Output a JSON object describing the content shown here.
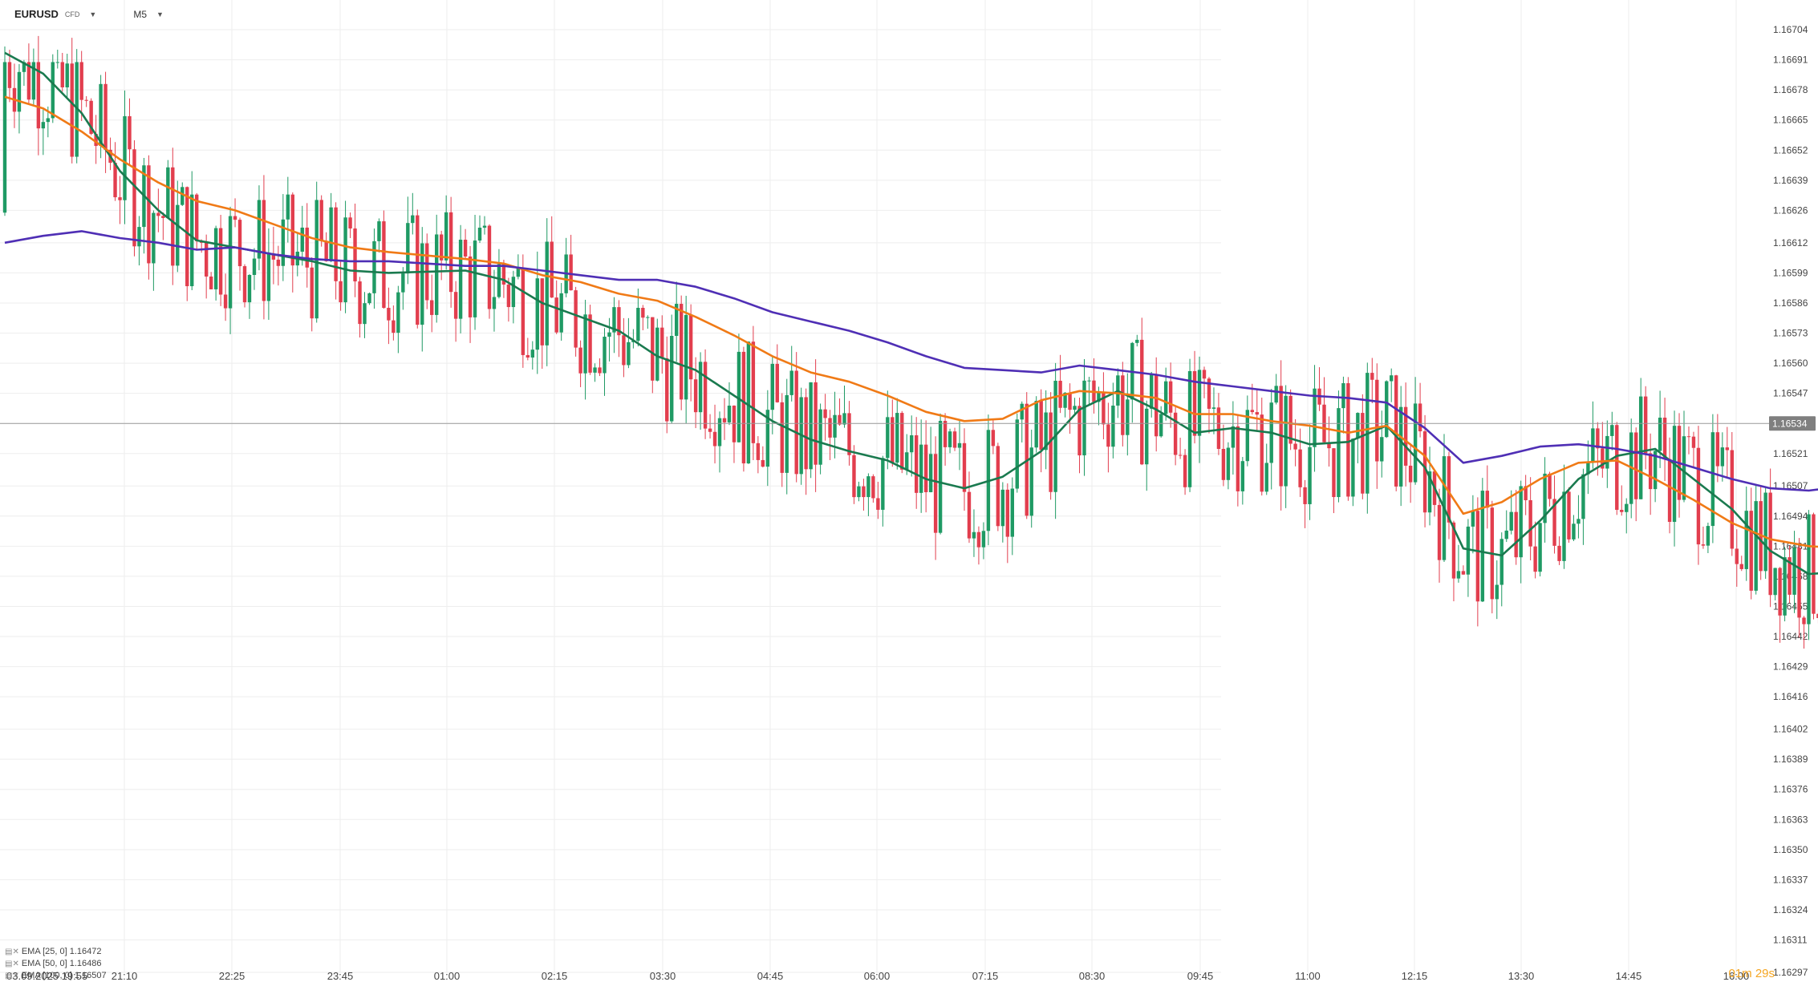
{
  "header": {
    "symbol": "EURUSD",
    "symbol_suffix": "CFD",
    "timeframe": "M5"
  },
  "indicators": [
    {
      "label": "EMA [25, 0] 1.16472",
      "color": "#1a7a4f"
    },
    {
      "label": "EMA [50, 0] 1.16486",
      "color": "#f07a16"
    },
    {
      "label": "EMA [100, 0] 1.16507",
      "color": "#4f2fb5"
    }
  ],
  "timer": {
    "minutes": "01",
    "m": "m",
    "seconds": "29",
    "s": "s"
  },
  "colors": {
    "up": "#1f9a64",
    "down": "#e23e4e",
    "grid": "#eeeeee",
    "price_line": "#999999",
    "price_label_bg": "#7f7f7f"
  },
  "chart_data": {
    "type": "candlestick",
    "symbol": "EURUSD",
    "timeframe": "M5",
    "y_ticks": [
      "1.16704",
      "1.16691",
      "1.16678",
      "1.16665",
      "1.16652",
      "1.16639",
      "1.16626",
      "1.16612",
      "1.16599",
      "1.16586",
      "1.16573",
      "1.16560",
      "1.16547",
      "1.16534",
      "1.16521",
      "1.16507",
      "1.16494",
      "1.16481",
      "1.16468",
      "1.16455",
      "1.16442",
      "1.16429",
      "1.16416",
      "1.16402",
      "1.16389",
      "1.16376",
      "1.16363",
      "1.16350",
      "1.16337",
      "1.16324",
      "1.16311",
      "1.16297"
    ],
    "ylim": [
      1.16297,
      1.16704
    ],
    "x_ticks": [
      "03.09.2025  19:55",
      "21:10",
      "22:25",
      "23:45",
      "01:00",
      "02:15",
      "03:30",
      "04:45",
      "06:00",
      "07:15",
      "08:30",
      "09:45",
      "11:00",
      "12:15",
      "13:30",
      "14:45",
      "16:00"
    ],
    "current_price": "1.16534",
    "grid": true,
    "ema_series": [
      {
        "name": "EMA [25, 0]",
        "color": "#1a7a4f",
        "points": [
          [
            0,
            1.16694
          ],
          [
            8,
            1.16685
          ],
          [
            16,
            1.16668
          ],
          [
            24,
            1.16643
          ],
          [
            32,
            1.16626
          ],
          [
            40,
            1.16613
          ],
          [
            48,
            1.1661
          ],
          [
            56,
            1.16607
          ],
          [
            64,
            1.16604
          ],
          [
            72,
            1.166
          ],
          [
            80,
            1.16599
          ],
          [
            96,
            1.166
          ],
          [
            104,
            1.16596
          ],
          [
            112,
            1.16586
          ],
          [
            120,
            1.1658
          ],
          [
            128,
            1.16574
          ],
          [
            136,
            1.16563
          ],
          [
            144,
            1.16557
          ],
          [
            152,
            1.16546
          ],
          [
            160,
            1.16535
          ],
          [
            168,
            1.16527
          ],
          [
            176,
            1.16522
          ],
          [
            184,
            1.16518
          ],
          [
            192,
            1.1651
          ],
          [
            200,
            1.16506
          ],
          [
            208,
            1.16511
          ],
          [
            216,
            1.16522
          ],
          [
            224,
            1.1654
          ],
          [
            232,
            1.16548
          ],
          [
            240,
            1.1654
          ],
          [
            248,
            1.1653
          ],
          [
            256,
            1.16532
          ],
          [
            264,
            1.1653
          ],
          [
            272,
            1.16525
          ],
          [
            280,
            1.16526
          ],
          [
            288,
            1.16533
          ],
          [
            296,
            1.16515
          ],
          [
            304,
            1.1648
          ],
          [
            312,
            1.16477
          ],
          [
            320,
            1.16492
          ],
          [
            328,
            1.1651
          ],
          [
            336,
            1.1652
          ],
          [
            344,
            1.16523
          ],
          [
            352,
            1.1651
          ],
          [
            360,
            1.16497
          ],
          [
            368,
            1.16479
          ],
          [
            376,
            1.16469
          ],
          [
            384,
            1.1647
          ]
        ]
      },
      {
        "name": "EMA [50, 0]",
        "color": "#f07a16",
        "points": [
          [
            0,
            1.16675
          ],
          [
            8,
            1.1667
          ],
          [
            16,
            1.1666
          ],
          [
            24,
            1.16648
          ],
          [
            32,
            1.16638
          ],
          [
            40,
            1.1663
          ],
          [
            48,
            1.16626
          ],
          [
            56,
            1.1662
          ],
          [
            64,
            1.16614
          ],
          [
            72,
            1.1661
          ],
          [
            80,
            1.16608
          ],
          [
            96,
            1.16605
          ],
          [
            104,
            1.16603
          ],
          [
            112,
            1.16598
          ],
          [
            120,
            1.16595
          ],
          [
            128,
            1.1659
          ],
          [
            136,
            1.16587
          ],
          [
            144,
            1.1658
          ],
          [
            152,
            1.16572
          ],
          [
            160,
            1.16563
          ],
          [
            168,
            1.16556
          ],
          [
            176,
            1.16552
          ],
          [
            184,
            1.16546
          ],
          [
            192,
            1.16539
          ],
          [
            200,
            1.16535
          ],
          [
            208,
            1.16536
          ],
          [
            216,
            1.16544
          ],
          [
            224,
            1.16548
          ],
          [
            232,
            1.16547
          ],
          [
            240,
            1.16545
          ],
          [
            248,
            1.16538
          ],
          [
            256,
            1.16538
          ],
          [
            264,
            1.16535
          ],
          [
            272,
            1.16533
          ],
          [
            280,
            1.1653
          ],
          [
            288,
            1.16533
          ],
          [
            296,
            1.1652
          ],
          [
            304,
            1.16495
          ],
          [
            312,
            1.165
          ],
          [
            320,
            1.1651
          ],
          [
            328,
            1.16517
          ],
          [
            336,
            1.16518
          ],
          [
            344,
            1.1651
          ],
          [
            352,
            1.16501
          ],
          [
            360,
            1.16491
          ],
          [
            368,
            1.16484
          ],
          [
            376,
            1.16481
          ],
          [
            384,
            1.1648
          ]
        ]
      },
      {
        "name": "EMA [100, 0]",
        "color": "#4f2fb5",
        "points": [
          [
            0,
            1.16612
          ],
          [
            8,
            1.16615
          ],
          [
            16,
            1.16617
          ],
          [
            24,
            1.16614
          ],
          [
            32,
            1.16612
          ],
          [
            40,
            1.16609
          ],
          [
            48,
            1.1661
          ],
          [
            56,
            1.16607
          ],
          [
            64,
            1.16605
          ],
          [
            72,
            1.16604
          ],
          [
            80,
            1.16604
          ],
          [
            96,
            1.16602
          ],
          [
            104,
            1.16602
          ],
          [
            112,
            1.166
          ],
          [
            120,
            1.16598
          ],
          [
            128,
            1.16596
          ],
          [
            136,
            1.16596
          ],
          [
            144,
            1.16593
          ],
          [
            152,
            1.16588
          ],
          [
            160,
            1.16582
          ],
          [
            168,
            1.16578
          ],
          [
            176,
            1.16574
          ],
          [
            184,
            1.16569
          ],
          [
            192,
            1.16563
          ],
          [
            200,
            1.16558
          ],
          [
            208,
            1.16557
          ],
          [
            216,
            1.16556
          ],
          [
            224,
            1.16559
          ],
          [
            232,
            1.16557
          ],
          [
            240,
            1.16555
          ],
          [
            248,
            1.16552
          ],
          [
            256,
            1.1655
          ],
          [
            264,
            1.16548
          ],
          [
            272,
            1.16546
          ],
          [
            280,
            1.16545
          ],
          [
            288,
            1.16543
          ],
          [
            296,
            1.16532
          ],
          [
            304,
            1.16517
          ],
          [
            312,
            1.1652
          ],
          [
            320,
            1.16524
          ],
          [
            328,
            1.16525
          ],
          [
            336,
            1.16523
          ],
          [
            344,
            1.1652
          ],
          [
            352,
            1.16515
          ],
          [
            360,
            1.1651
          ],
          [
            368,
            1.16506
          ],
          [
            376,
            1.16505
          ],
          [
            384,
            1.16507
          ]
        ]
      }
    ]
  }
}
